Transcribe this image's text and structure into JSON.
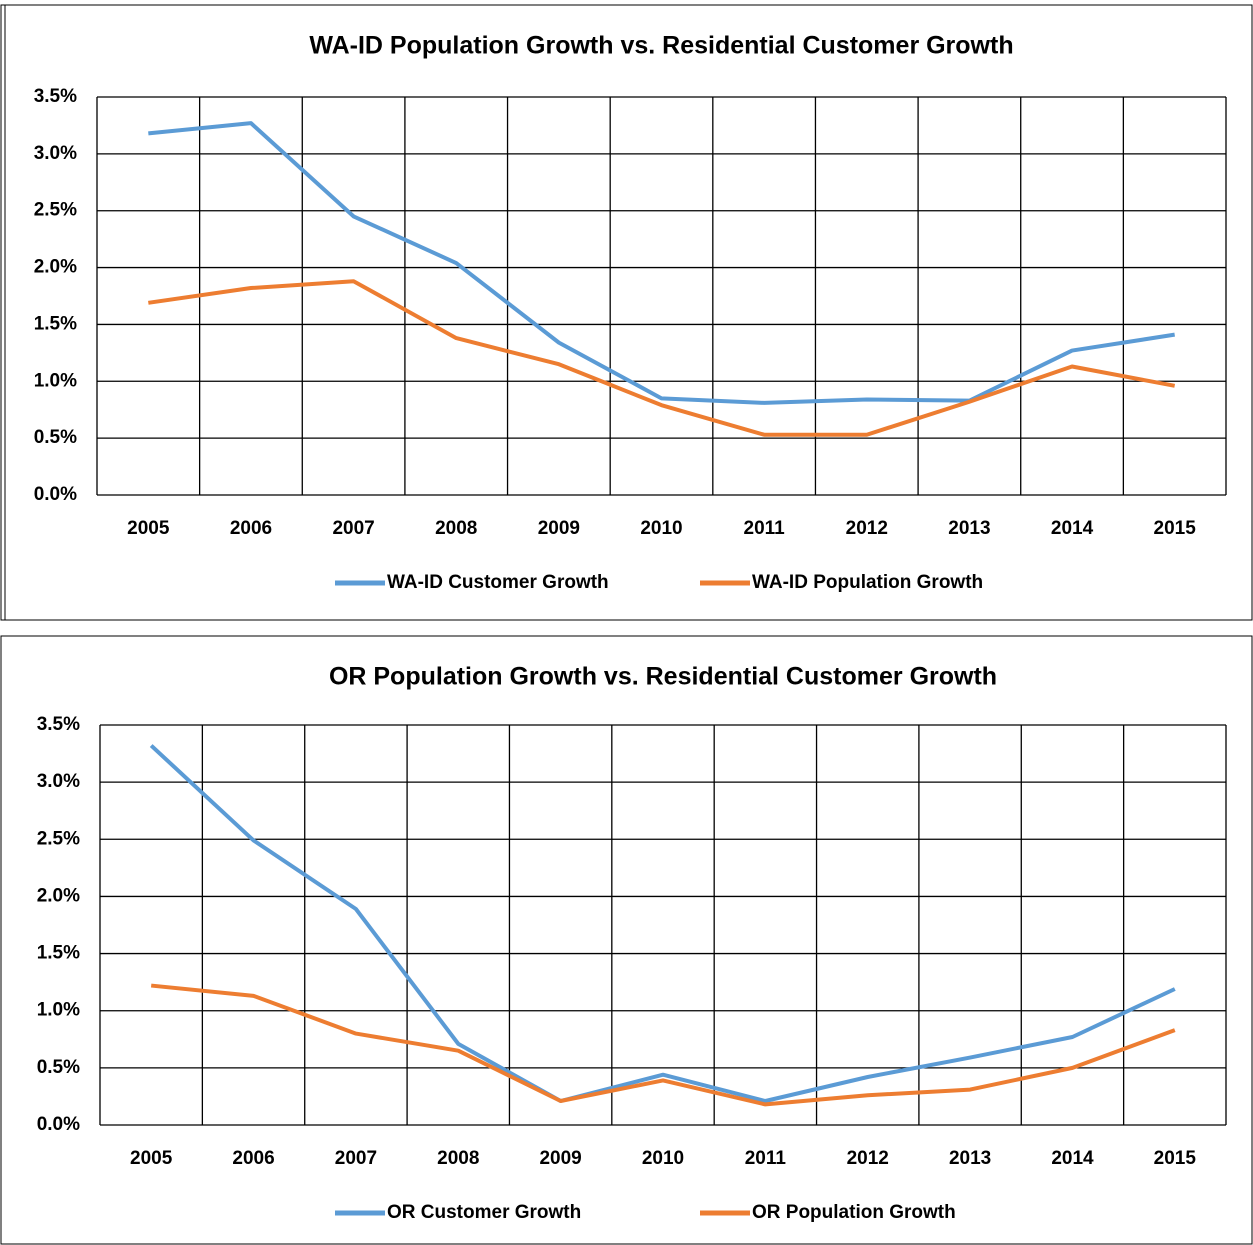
{
  "chart_data": [
    {
      "type": "line",
      "title": "WA-ID Population Growth vs. Residential Customer Growth",
      "categories": [
        "2005",
        "2006",
        "2007",
        "2008",
        "2009",
        "2010",
        "2011",
        "2012",
        "2013",
        "2014",
        "2015"
      ],
      "series": [
        {
          "name": "WA-ID Customer Growth",
          "color": "#5b9bd5",
          "values": [
            3.18,
            3.27,
            2.45,
            2.04,
            1.34,
            0.85,
            0.81,
            0.84,
            0.83,
            1.27,
            1.41
          ]
        },
        {
          "name": "WA-ID Population Growth",
          "color": "#ed7d31",
          "values": [
            1.69,
            1.82,
            1.88,
            1.38,
            1.15,
            0.79,
            0.53,
            0.53,
            0.82,
            1.13,
            0.96
          ]
        }
      ],
      "ylim": [
        0,
        3.5
      ],
      "yticks": [
        {
          "value": 0,
          "label": "0.0%"
        },
        {
          "value": 0.5,
          "label": "0.5%"
        },
        {
          "value": 1,
          "label": "1.0%"
        },
        {
          "value": 1.5,
          "label": "1.5%"
        },
        {
          "value": 2,
          "label": "2.0%"
        },
        {
          "value": 2.5,
          "label": "2.5%"
        },
        {
          "value": 3,
          "label": "3.0%"
        },
        {
          "value": 3.5,
          "label": "3.5%"
        }
      ],
      "grid": true,
      "legend": "bottom"
    },
    {
      "type": "line",
      "title": "OR Population Growth vs. Residential Customer Growth",
      "categories": [
        "2005",
        "2006",
        "2007",
        "2008",
        "2009",
        "2010",
        "2011",
        "2012",
        "2013",
        "2014",
        "2015"
      ],
      "series": [
        {
          "name": "OR Customer Growth",
          "color": "#5b9bd5",
          "values": [
            3.32,
            2.49,
            1.89,
            0.71,
            0.21,
            0.44,
            0.21,
            0.42,
            0.59,
            0.77,
            1.19
          ]
        },
        {
          "name": "OR Population Growth",
          "color": "#ed7d31",
          "values": [
            1.22,
            1.13,
            0.8,
            0.65,
            0.21,
            0.39,
            0.18,
            0.26,
            0.31,
            0.5,
            0.83
          ]
        }
      ],
      "ylim": [
        0,
        3.5
      ],
      "yticks": [
        {
          "value": 0,
          "label": "0.0%"
        },
        {
          "value": 0.5,
          "label": "0.5%"
        },
        {
          "value": 1,
          "label": "1.0%"
        },
        {
          "value": 1.5,
          "label": "1.5%"
        },
        {
          "value": 2,
          "label": "2.0%"
        },
        {
          "value": 2.5,
          "label": "2.5%"
        },
        {
          "value": 3,
          "label": "3.0%"
        },
        {
          "value": 3.5,
          "label": "3.5%"
        }
      ],
      "grid": true,
      "legend": "bottom"
    }
  ]
}
